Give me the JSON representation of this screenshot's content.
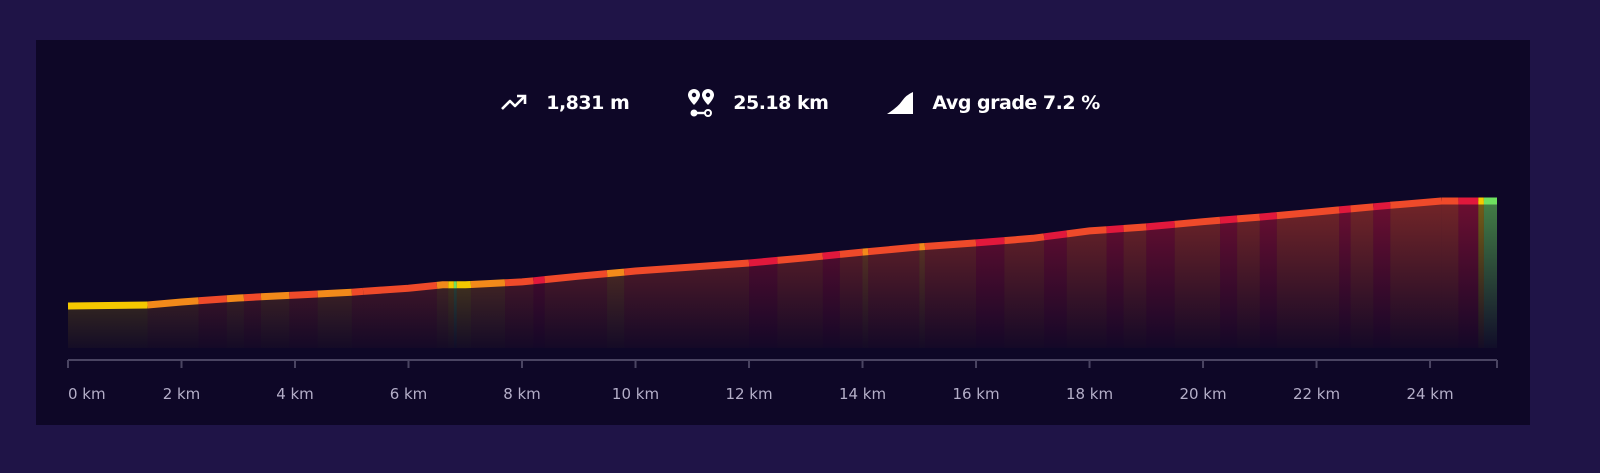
{
  "stats": {
    "elevation_gain": "1,831 m",
    "distance": "25.18 km",
    "avg_grade": "Avg grade 7.2 %",
    "icons": [
      "trending-up-icon",
      "route-pins-icon",
      "grade-slope-icon"
    ]
  },
  "chart_data": {
    "type": "area",
    "title": "",
    "xlabel": "",
    "ylabel": "",
    "x_unit": "km",
    "xlim": [
      0,
      25.18
    ],
    "grid": false,
    "x_ticks": [
      0,
      2,
      4,
      6,
      8,
      10,
      12,
      14,
      16,
      18,
      20,
      22,
      24
    ],
    "x_tick_labels": [
      "0 km",
      "2 km",
      "4 km",
      "6 km",
      "8 km",
      "10 km",
      "12 km",
      "14 km",
      "16 km",
      "18 km",
      "20 km",
      "22 km",
      "24 km"
    ],
    "profile": {
      "x": [
        0,
        1.4,
        2,
        3,
        4,
        5,
        6,
        6.6,
        7,
        8,
        9,
        10,
        11,
        12,
        13,
        14,
        15,
        16,
        17,
        18,
        19,
        20,
        21,
        22,
        23,
        24.2,
        25.18
      ],
      "elevation_gain_m": [
        0,
        17,
        70,
        140,
        190,
        240,
        310,
        370,
        370,
        420,
        520,
        610,
        680,
        750,
        840,
        940,
        1030,
        1100,
        1180,
        1310,
        1380,
        1470,
        1550,
        1640,
        1730,
        1831,
        1831
      ]
    },
    "grade_colors": {
      "flat": "#6ee060",
      "easy": "#f5c800",
      "moderate": "#f28a1a",
      "steep": "#ef4a2a",
      "very_steep": "#e0183c"
    },
    "segments": [
      [
        0,
        1.4,
        "easy"
      ],
      [
        1.4,
        2.3,
        "moderate"
      ],
      [
        2.3,
        2.8,
        "steep"
      ],
      [
        2.8,
        3.1,
        "moderate"
      ],
      [
        3.1,
        3.4,
        "steep"
      ],
      [
        3.4,
        3.9,
        "moderate"
      ],
      [
        3.9,
        4.4,
        "steep"
      ],
      [
        4.4,
        5.0,
        "moderate"
      ],
      [
        5.0,
        5.2,
        "steep"
      ],
      [
        5.2,
        6.5,
        "steep"
      ],
      [
        6.5,
        6.7,
        "moderate"
      ],
      [
        6.7,
        6.8,
        "easy"
      ],
      [
        6.8,
        6.85,
        "flat"
      ],
      [
        6.85,
        7.1,
        "easy"
      ],
      [
        7.1,
        7.7,
        "moderate"
      ],
      [
        7.7,
        8.2,
        "steep"
      ],
      [
        8.2,
        8.4,
        "very_steep"
      ],
      [
        8.4,
        9.5,
        "steep"
      ],
      [
        9.5,
        9.8,
        "moderate"
      ],
      [
        9.8,
        12.0,
        "steep"
      ],
      [
        12.0,
        12.5,
        "very_steep"
      ],
      [
        12.5,
        13.3,
        "steep"
      ],
      [
        13.3,
        13.6,
        "very_steep"
      ],
      [
        13.6,
        14.0,
        "steep"
      ],
      [
        14.0,
        14.1,
        "moderate"
      ],
      [
        14.1,
        15.0,
        "steep"
      ],
      [
        15.0,
        15.1,
        "moderate"
      ],
      [
        15.1,
        16.0,
        "steep"
      ],
      [
        16.0,
        16.5,
        "very_steep"
      ],
      [
        16.5,
        17.2,
        "steep"
      ],
      [
        17.2,
        17.6,
        "very_steep"
      ],
      [
        17.6,
        18.3,
        "steep"
      ],
      [
        18.3,
        18.6,
        "very_steep"
      ],
      [
        18.6,
        19.0,
        "steep"
      ],
      [
        19.0,
        19.5,
        "very_steep"
      ],
      [
        19.5,
        20.3,
        "steep"
      ],
      [
        20.3,
        20.6,
        "very_steep"
      ],
      [
        20.6,
        21.0,
        "steep"
      ],
      [
        21.0,
        21.3,
        "very_steep"
      ],
      [
        21.3,
        22.4,
        "steep"
      ],
      [
        22.4,
        22.6,
        "very_steep"
      ],
      [
        22.6,
        23.0,
        "steep"
      ],
      [
        23.0,
        23.3,
        "very_steep"
      ],
      [
        23.3,
        24.2,
        "steep"
      ],
      [
        24.2,
        24.5,
        "steep"
      ],
      [
        24.5,
        24.85,
        "very_steep"
      ],
      [
        24.85,
        24.95,
        "easy"
      ],
      [
        24.95,
        25.18,
        "flat"
      ]
    ]
  }
}
